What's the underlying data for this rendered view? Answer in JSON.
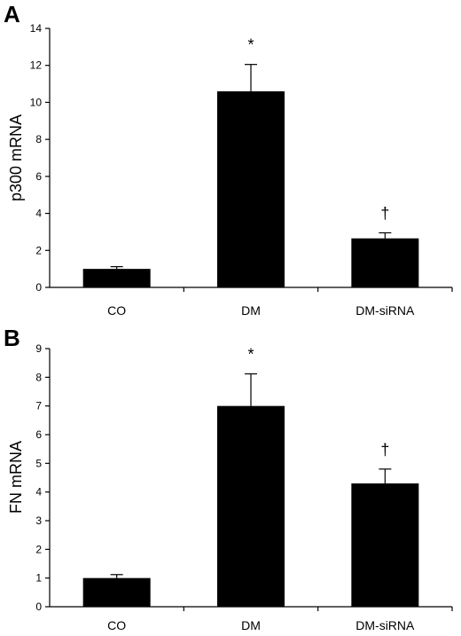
{
  "chart_data": [
    {
      "type": "bar",
      "panel": "A",
      "ylabel": "p300 mRNA",
      "xlabel": "",
      "categories": [
        "CO",
        "DM",
        "DM-siRNA"
      ],
      "values": [
        1.0,
        10.6,
        2.65
      ],
      "error": [
        0.12,
        1.45,
        0.3
      ],
      "annotations": [
        "",
        "*",
        "†"
      ],
      "ylim": [
        0,
        14
      ],
      "yticks": [
        "0",
        "2",
        "4",
        "6",
        "8",
        "10",
        "12",
        "14"
      ],
      "grid": false,
      "bar_color": "#000000"
    },
    {
      "type": "bar",
      "panel": "B",
      "ylabel": "FN mRNA",
      "xlabel": "",
      "categories": [
        "CO",
        "DM",
        "DM-siRNA"
      ],
      "values": [
        1.0,
        7.0,
        4.3
      ],
      "error": [
        0.12,
        1.12,
        0.5
      ],
      "annotations": [
        "",
        "*",
        "†"
      ],
      "ylim": [
        0,
        9
      ],
      "yticks": [
        "0",
        "1",
        "2",
        "3",
        "4",
        "5",
        "6",
        "7",
        "8",
        "9"
      ],
      "grid": false,
      "bar_color": "#000000"
    }
  ]
}
